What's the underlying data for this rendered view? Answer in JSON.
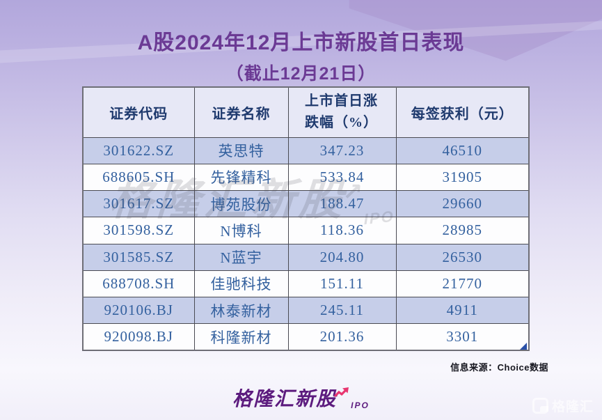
{
  "page": {
    "title_line1": "A股2024年12月上市新股首日表现",
    "title_line2": "（截止12月21日）"
  },
  "table": {
    "headers": [
      "证券代码",
      "证券名称",
      "上市首日涨跌幅（%）",
      "每签获利（元）"
    ],
    "rows": [
      [
        "301622.SZ",
        "英思特",
        "347.23",
        "46510"
      ],
      [
        "688605.SH",
        "先锋精科",
        "533.84",
        "31905"
      ],
      [
        "301617.SZ",
        "博苑股份",
        "188.47",
        "29660"
      ],
      [
        "301598.SZ",
        "N博科",
        "118.36",
        "28985"
      ],
      [
        "301585.SZ",
        "N蓝宇",
        "204.80",
        "26530"
      ],
      [
        "688708.SH",
        "佳驰科技",
        "151.11",
        "21770"
      ],
      [
        "920106.BJ",
        "林泰新材",
        "245.11",
        "4911"
      ],
      [
        "920098.BJ",
        "科隆新材",
        "201.36",
        "3301"
      ]
    ]
  },
  "chart_data": {
    "type": "table",
    "title": "A股2024年12月上市新股首日表现（截止12月21日）",
    "columns": [
      "证券代码",
      "证券名称",
      "上市首日涨跌幅（%）",
      "每签获利（元）"
    ],
    "rows": [
      [
        "301622.SZ",
        "英思特",
        347.23,
        46510
      ],
      [
        "688605.SH",
        "先锋精科",
        533.84,
        31905
      ],
      [
        "301617.SZ",
        "博苑股份",
        188.47,
        29660
      ],
      [
        "301598.SZ",
        "N博科",
        118.36,
        28985
      ],
      [
        "301585.SZ",
        "N蓝宇",
        204.8,
        26530
      ],
      [
        "688708.SH",
        "佳驰科技",
        151.11,
        21770
      ],
      [
        "920106.BJ",
        "林泰新材",
        245.11,
        4911
      ],
      [
        "920098.BJ",
        "科隆新材",
        201.36,
        3301
      ]
    ]
  },
  "source_note": "信息来源：Choice数据",
  "watermark": {
    "text": "格隆汇新股",
    "arrow": "↗",
    "ipo": "IPO"
  },
  "footer_logo": {
    "text": "格隆汇新股",
    "ipo": "IPO"
  },
  "corner_logo": {
    "text": "格隆汇"
  },
  "colors": {
    "title": "#6b3a94",
    "header_bg": "#e7e8f6",
    "row_alt_bg": "#c6cee9",
    "cell_text": "#34619f",
    "header_text": "#1f3a6e",
    "logo_purple": "#5c1b7e",
    "logo_pink": "#e8356f",
    "fill_handle_blue": "#2a50a8"
  }
}
